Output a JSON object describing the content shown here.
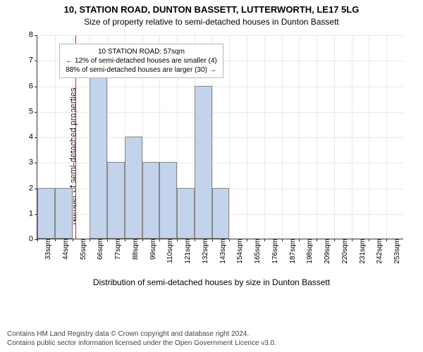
{
  "title": "10, STATION ROAD, DUNTON BASSETT, LUTTERWORTH, LE17 5LG",
  "subtitle": "Size of property relative to semi-detached houses in Dunton Bassett",
  "ylabel": "Number of semi-detached properties",
  "xlabel": "Distribution of semi-detached houses by size in Dunton Bassett",
  "footer1": "Contains HM Land Registry data © Crown copyright and database right 2024.",
  "footer2": "Contains public sector information licensed under the Open Government Licence v3.0.",
  "chart": {
    "type": "histogram",
    "xlim": [
      33,
      264
    ],
    "ylim": [
      0,
      8
    ],
    "ytick_step": 1,
    "bar_color": "#c3d3eb",
    "bar_border": "#888888",
    "grid_color": "#e8e8e8",
    "axis_color": "#333333",
    "background": "#ffffff",
    "refline_x": 57,
    "refline_color": "#dd2222",
    "xtick_labels": [
      "33sqm",
      "44sqm",
      "55sqm",
      "66sqm",
      "77sqm",
      "88sqm",
      "99sqm",
      "110sqm",
      "121sqm",
      "132sqm",
      "143sqm",
      "154sqm",
      "165sqm",
      "176sqm",
      "187sqm",
      "198sqm",
      "209sqm",
      "220sqm",
      "231sqm",
      "242sqm",
      "253sqm"
    ],
    "xtick_step": 11,
    "bin_width": 11,
    "bars": [
      {
        "x": 33,
        "h": 2
      },
      {
        "x": 44,
        "h": 2
      },
      {
        "x": 66,
        "h": 7
      },
      {
        "x": 77,
        "h": 3
      },
      {
        "x": 88,
        "h": 4
      },
      {
        "x": 99,
        "h": 3
      },
      {
        "x": 110,
        "h": 3
      },
      {
        "x": 121,
        "h": 2
      },
      {
        "x": 132,
        "h": 6
      },
      {
        "x": 143,
        "h": 2
      }
    ],
    "infobox": {
      "left_pct": 6,
      "top_pct": 4,
      "line1": "10 STATION ROAD: 57sqm",
      "line2": "← 12% of semi-detached houses are smaller (4)",
      "line3": "88% of semi-detached houses are larger (30) →"
    }
  }
}
